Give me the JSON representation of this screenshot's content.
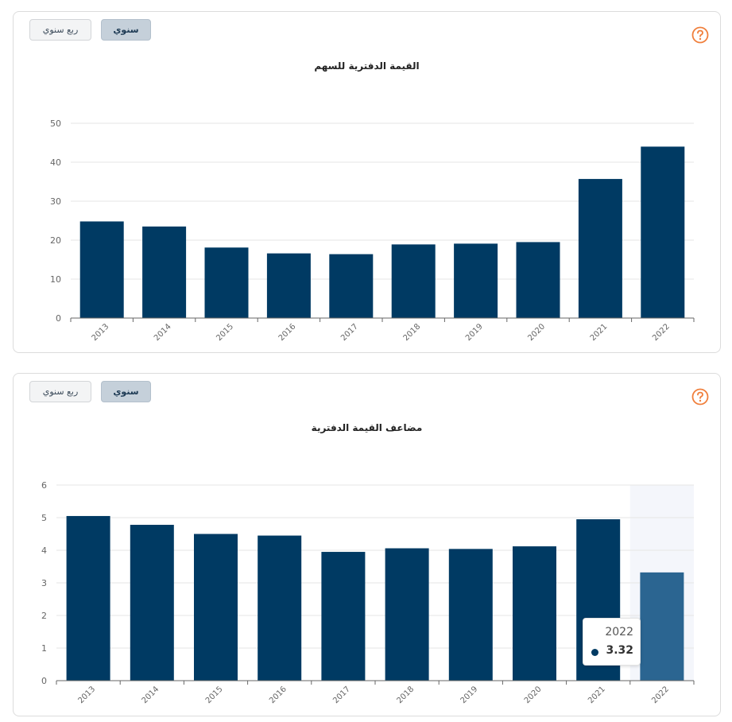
{
  "panels": [
    {
      "buttons": {
        "quarterly": "ربع سنوي",
        "annual": "سنوي"
      },
      "help_icon": "question-circle-icon"
    },
    {
      "buttons": {
        "quarterly": "ربع سنوي",
        "annual": "سنوي"
      },
      "help_icon": "question-circle-icon",
      "tooltip": {
        "year": "2022",
        "value": "3.32"
      }
    }
  ],
  "colors": {
    "bar": "#003a63",
    "bar_highlight": "#2b6591",
    "hover_band": "#f4f6fb",
    "help": "#f07f3c"
  },
  "chart_data": [
    {
      "type": "bar",
      "title": "القيمة الدفترية للسهم",
      "categories": [
        "2013",
        "2014",
        "2015",
        "2016",
        "2017",
        "2018",
        "2019",
        "2020",
        "2021",
        "2022"
      ],
      "values": [
        24.8,
        23.5,
        18.1,
        16.6,
        16.4,
        18.9,
        19.1,
        19.5,
        35.7,
        44.0
      ],
      "ylim": [
        0,
        50
      ],
      "yticks": [
        0,
        10,
        20,
        30,
        40,
        50
      ],
      "grid": true
    },
    {
      "type": "bar",
      "title": "مضاعف القيمة الدفترية",
      "categories": [
        "2013",
        "2014",
        "2015",
        "2016",
        "2017",
        "2018",
        "2019",
        "2020",
        "2021",
        "2022"
      ],
      "values": [
        5.05,
        4.78,
        4.5,
        4.45,
        3.95,
        4.06,
        4.04,
        4.12,
        4.95,
        3.32
      ],
      "ylim": [
        0,
        6
      ],
      "yticks": [
        0,
        1,
        2,
        3,
        4,
        5,
        6
      ],
      "grid": true,
      "highlighted_category": "2022"
    }
  ]
}
